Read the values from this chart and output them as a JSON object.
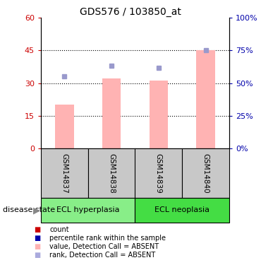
{
  "title": "GDS576 / 103850_at",
  "samples": [
    "GSM14837",
    "GSM14838",
    "GSM14839",
    "GSM14840"
  ],
  "bar_values": [
    20,
    32,
    31,
    45
  ],
  "rank_values": [
    33,
    38,
    37,
    45
  ],
  "ylim_left": [
    0,
    60
  ],
  "ylim_right": [
    0,
    100
  ],
  "yticks_left": [
    0,
    15,
    30,
    45,
    60
  ],
  "yticks_right": [
    0,
    25,
    50,
    75,
    100
  ],
  "bar_color": "#FFB3B3",
  "rank_color": "#9999CC",
  "sample_box_color": "#C8C8C8",
  "hyperplasia_color": "#88EE88",
  "neoplasia_color": "#44DD44",
  "left_axis_color": "#CC0000",
  "right_axis_color": "#0000AA",
  "legend_colors": [
    "#CC0000",
    "#0000AA",
    "#FFB3B3",
    "#AAAADD"
  ],
  "legend_labels": [
    "count",
    "percentile rank within the sample",
    "value, Detection Call = ABSENT",
    "rank, Detection Call = ABSENT"
  ]
}
